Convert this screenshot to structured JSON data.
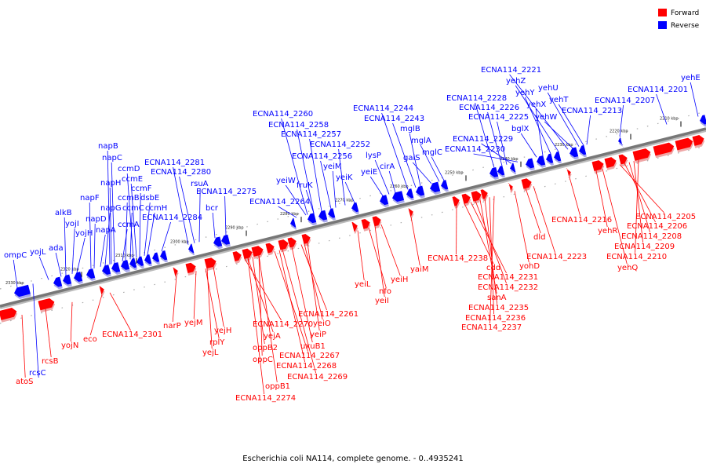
{
  "caption": "Escherichia coli NA114, complete genome. - 0..4935241",
  "legend": [
    {
      "label": "Forward",
      "color": "#ff0000"
    },
    {
      "label": "Reverse",
      "color": "#0000ff"
    }
  ],
  "colors": {
    "forward": "#ff0000",
    "reverse": "#0000ff",
    "backbone": "#777777"
  },
  "ticks": [
    "2330 kbp",
    "2320 kbp",
    "2310 kbp",
    "2300 kbp",
    "2290 kbp",
    "2280 kbp",
    "2270 kbp",
    "2260 kbp",
    "2250 kbp",
    "2240 kbp",
    "2230 kbp",
    "2220 kbp",
    "2210 kbp"
  ],
  "reverse_genes": [
    "ompC",
    "yojL",
    "ada",
    "alkB",
    "yojI",
    "yojH",
    "napF",
    "napD",
    "napA",
    "napG",
    "napH",
    "napB",
    "napC",
    "ccmA",
    "ccmB",
    "ccmC",
    "ccmD",
    "ccmE",
    "ccmF",
    "dsbE",
    "ccmH",
    "ECNA114_2284",
    "ECNA114_2281",
    "ECNA114_2280",
    "rsuA",
    "bcr",
    "ECNA114_2275",
    "ECNA114_2264",
    "yeiW",
    "fruK",
    "ECNA114_2260",
    "ECNA114_2258",
    "ECNA114_2257",
    "ECNA114_2256",
    "yeiM",
    "ECNA114_2252",
    "yeiK",
    "yeiE",
    "lysP",
    "cirA",
    "ECNA114_2244",
    "ECNA114_2243",
    "mglB",
    "galS",
    "mglA",
    "mglC",
    "ECNA114_2228",
    "ECNA114_2226",
    "ECNA114_2225",
    "ECNA114_2229",
    "ECNA114_2230",
    "bglX",
    "yehX",
    "yehY",
    "yehZ",
    "ECNA114_2221",
    "yehW",
    "yehU",
    "yehT",
    "ECNA114_2213",
    "ECNA114_2207",
    "ECNA114_2201",
    "yehE",
    "rcsC"
  ],
  "forward_genes": [
    "atoS",
    "rcsB",
    "yojN",
    "eco",
    "ECNA114_2301",
    "narP",
    "yejM",
    "rplY",
    "yejL",
    "yejH",
    "ECNA114_2270",
    "yejA",
    "oppB2",
    "oppC",
    "ECNA114_2267",
    "ECNA114_2268",
    "ECNA114_2269",
    "oppB1",
    "ECNA114_2274",
    "uxuB1",
    "ECNA114_2261",
    "yeiO",
    "yeiP",
    "yeiL",
    "nfo",
    "yeiI",
    "yeiH",
    "yaiM",
    "ECNA114_2238",
    "cdd",
    "ECNA114_2231",
    "ECNA114_2232",
    "sanA",
    "ECNA114_2235",
    "ECNA114_2236",
    "ECNA114_2237",
    "yohD",
    "dld",
    "ECNA114_2223",
    "ECNA114_2216",
    "yehR",
    "ECNA114_2205",
    "ECNA114_2206",
    "ECNA114_2208",
    "ECNA114_2209",
    "ECNA114_2210",
    "yehQ"
  ]
}
